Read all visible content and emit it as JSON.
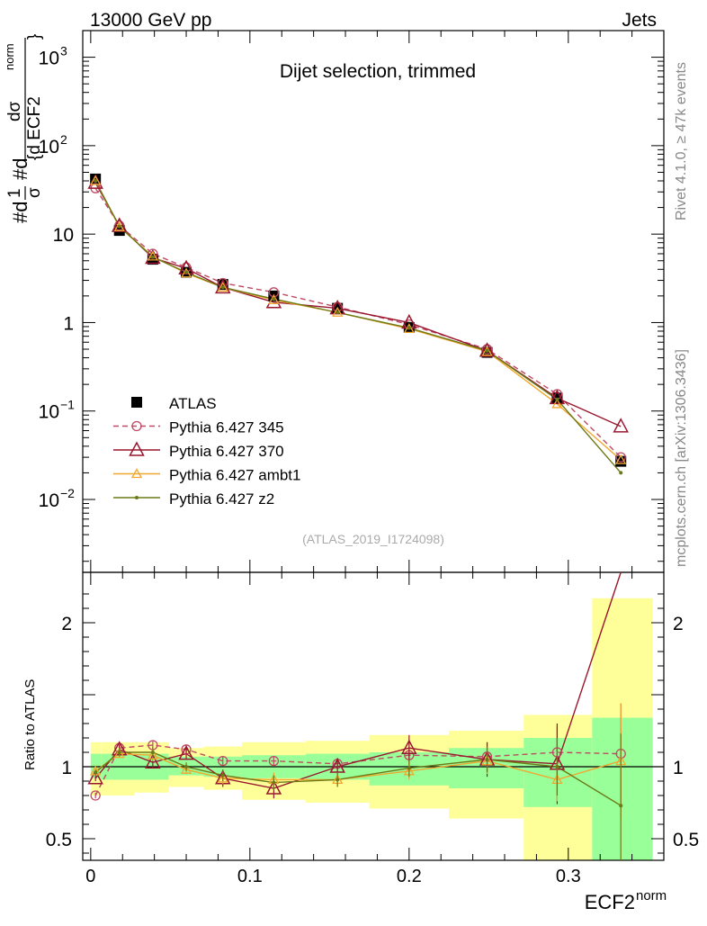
{
  "header": {
    "left": "13000 GeV pp",
    "right": "Jets",
    "side_top": "Rivet 4.1.0, ≥ 47k events",
    "side_bottom": "mcplots.cern.ch [arXiv:1306.3436]"
  },
  "chart_data": {
    "type": "line",
    "title": "Dijet selection, trimmed",
    "watermark": "(ATLAS_2019_I1724098)",
    "xlabel_main": "ECF2",
    "xlabel_sup": "norm",
    "ylabel_main": "#d1/σ #dσ/{d ECF2^norm}",
    "ylabel_ratio": "Ratio to ATLAS",
    "xlim": [
      -0.005,
      0.36
    ],
    "ylim_main": [
      0.0015,
      2000
    ],
    "ylim_ratio": [
      0.35,
      2.35
    ],
    "x_ticks": [
      "0",
      "0.1",
      "0.2",
      "0.3"
    ],
    "x_tick_values": [
      0,
      0.1,
      0.2,
      0.3
    ],
    "y_ticks_main": [
      {
        "v": 0.01,
        "base": "10",
        "exp": "−2"
      },
      {
        "v": 0.1,
        "base": "10",
        "exp": "−1"
      },
      {
        "v": 1,
        "base": "1",
        "exp": ""
      },
      {
        "v": 10,
        "base": "10",
        "exp": ""
      },
      {
        "v": 100,
        "base": "10",
        "exp": "2"
      },
      {
        "v": 1000,
        "base": "10",
        "exp": "3"
      }
    ],
    "y_ticks_ratio": [
      {
        "v": 0.5,
        "label": "0.5"
      },
      {
        "v": 1,
        "label": "1"
      },
      {
        "v": 2,
        "label": "2"
      }
    ],
    "bins": [
      [
        0,
        0.0065
      ],
      [
        0.0065,
        0.0275
      ],
      [
        0.0275,
        0.049
      ],
      [
        0.049,
        0.071
      ],
      [
        0.071,
        0.095
      ],
      [
        0.095,
        0.135
      ],
      [
        0.135,
        0.175
      ],
      [
        0.175,
        0.225
      ],
      [
        0.225,
        0.272
      ],
      [
        0.272,
        0.315
      ],
      [
        0.315,
        0.353
      ]
    ],
    "x": [
      0.003,
      0.018,
      0.039,
      0.06,
      0.083,
      0.115,
      0.155,
      0.2,
      0.249,
      0.293,
      0.333
    ],
    "data": {
      "name": "ATLAS",
      "values": [
        42,
        11,
        5.2,
        3.7,
        2.7,
        2.0,
        1.45,
        0.88,
        0.46,
        0.14,
        0.027
      ]
    },
    "band_inner": [
      [
        0.92,
        1.09
      ],
      [
        0.91,
        1.09
      ],
      [
        0.91,
        1.09
      ],
      [
        0.94,
        1.07
      ],
      [
        0.93,
        1.07
      ],
      [
        0.92,
        1.08
      ],
      [
        0.91,
        1.09
      ],
      [
        0.87,
        1.1
      ],
      [
        0.85,
        1.13
      ],
      [
        0.72,
        1.2
      ],
      [
        0.35,
        1.34
      ]
    ],
    "band_outer": [
      [
        0.8,
        1.17
      ],
      [
        0.8,
        1.17
      ],
      [
        0.82,
        1.17
      ],
      [
        0.86,
        1.13
      ],
      [
        0.84,
        1.14
      ],
      [
        0.77,
        1.17
      ],
      [
        0.75,
        1.18
      ],
      [
        0.71,
        1.22
      ],
      [
        0.64,
        1.25
      ],
      [
        0.35,
        1.36
      ],
      [
        0.35,
        2.17
      ]
    ],
    "series": [
      {
        "name": "Pythia 6.427 345",
        "color": "#c04a64",
        "dash": "6,4",
        "marker": "circle",
        "values": [
          33,
          12.5,
          6.0,
          4.2,
          2.8,
          2.2,
          1.5,
          0.95,
          0.5,
          0.155,
          0.03
        ],
        "ratio": [
          0.8,
          1.13,
          1.15,
          1.12,
          1.04,
          1.04,
          1.02,
          1.08,
          1.07,
          1.1,
          1.09
        ],
        "ratio_err": [
          0.02,
          0.03,
          0.03,
          0.03,
          0.03,
          0.03,
          0.04,
          0.06,
          0.1,
          0.18,
          0.35
        ]
      },
      {
        "name": "Pythia 6.427 370",
        "color": "#99172e",
        "dash": "",
        "marker": "triangle-open",
        "values": [
          38,
          12.4,
          5.4,
          4.1,
          2.5,
          1.7,
          1.45,
          1.0,
          0.48,
          0.14,
          0.067
        ],
        "ratio": [
          0.92,
          1.12,
          1.03,
          1.09,
          0.92,
          0.85,
          1.0,
          1.13,
          1.05,
          1.02,
          2.35
        ],
        "ratio_err": [
          0.02,
          0.03,
          0.04,
          0.04,
          0.06,
          0.07,
          0.06,
          0.09,
          0.12,
          0.28,
          0.0
        ]
      },
      {
        "name": "Pythia 6.427 ambt1",
        "color": "#f0a830",
        "dash": "",
        "marker": "triangle-small",
        "values": [
          40,
          12.0,
          5.6,
          3.6,
          2.5,
          1.8,
          1.3,
          0.85,
          0.47,
          0.12,
          0.028
        ],
        "ratio": [
          0.97,
          1.09,
          1.08,
          0.98,
          0.92,
          0.91,
          0.91,
          0.97,
          1.04,
          0.91,
          1.04
        ],
        "ratio_err": [
          0.02,
          0.03,
          0.04,
          0.03,
          0.04,
          0.05,
          0.05,
          0.06,
          0.09,
          0.15,
          0.4
        ]
      },
      {
        "name": "Pythia 6.427 z2",
        "color": "#6b7a16",
        "dash": "",
        "marker": "dot",
        "values": [
          40,
          12.2,
          5.5,
          3.7,
          2.5,
          1.85,
          1.3,
          0.87,
          0.48,
          0.135,
          0.02
        ],
        "ratio": [
          0.96,
          1.1,
          1.1,
          1.0,
          0.94,
          0.89,
          0.91,
          0.99,
          1.05,
          1.0,
          0.73
        ],
        "ratio_err": [
          0.02,
          0.03,
          0.04,
          0.03,
          0.04,
          0.05,
          0.05,
          0.06,
          0.09,
          0.2,
          0.5
        ]
      }
    ]
  }
}
